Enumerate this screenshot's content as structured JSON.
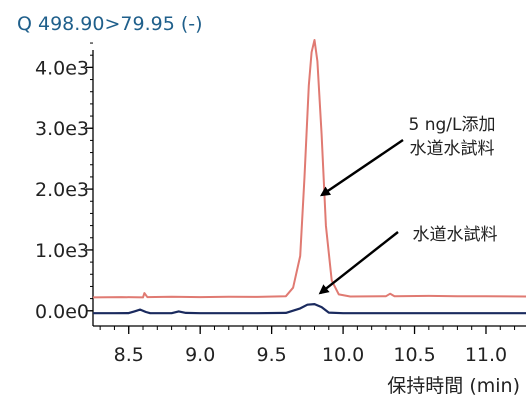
{
  "chart_data": {
    "type": "line",
    "title": "Q 498.90>79.95 (-)",
    "xlabel": "保持時間 (min)",
    "ylabel": "",
    "xlim": [
      8.25,
      11.28
    ],
    "ylim": [
      -250,
      4450
    ],
    "x_ticks": [
      8.5,
      9.0,
      9.5,
      10.0,
      10.5,
      11.0
    ],
    "x_tick_labels": [
      "8.5",
      "9.0",
      "9.5",
      "10.0",
      "10.5",
      "11.0"
    ],
    "y_ticks": [
      0,
      1000,
      2000,
      3000,
      4000
    ],
    "y_tick_labels": [
      "0.0e0",
      "1.0e3",
      "2.0e3",
      "3.0e3",
      "4.0e3"
    ],
    "grid": false,
    "series": [
      {
        "name": "5 ng/L添加 水道水試料",
        "color": "#e07a72",
        "x": [
          8.25,
          8.45,
          8.6,
          8.61,
          8.63,
          8.8,
          9.0,
          9.2,
          9.4,
          9.6,
          9.65,
          9.7,
          9.73,
          9.76,
          9.78,
          9.8,
          9.82,
          9.85,
          9.88,
          9.92,
          9.97,
          10.05,
          10.3,
          10.33,
          10.36,
          10.6,
          10.8,
          11.0,
          11.28
        ],
        "y": [
          220,
          225,
          220,
          290,
          225,
          230,
          225,
          230,
          228,
          240,
          380,
          900,
          2200,
          3700,
          4250,
          4450,
          4100,
          2900,
          1400,
          500,
          270,
          235,
          240,
          280,
          240,
          245,
          240,
          240,
          235
        ]
      },
      {
        "name": "水道水試料",
        "color": "#1a2a5e",
        "x": [
          8.25,
          8.4,
          8.5,
          8.54,
          8.58,
          8.62,
          8.65,
          8.7,
          8.8,
          8.85,
          8.9,
          9.0,
          9.2,
          9.4,
          9.6,
          9.7,
          9.75,
          9.8,
          9.85,
          9.9,
          10.0,
          10.2,
          10.6,
          11.0,
          11.28
        ],
        "y": [
          -40,
          -40,
          -38,
          -10,
          20,
          -20,
          -40,
          -40,
          -40,
          -10,
          -35,
          -40,
          -40,
          -40,
          -35,
          40,
          100,
          110,
          60,
          -30,
          -40,
          -40,
          -40,
          -40,
          -40
        ]
      }
    ],
    "annotations": [
      {
        "lines": [
          "5 ng/L添加",
          "水道水試料"
        ],
        "points_to": [
          9.85,
          1900
        ]
      },
      {
        "lines": [
          "水道水試料"
        ],
        "points_to": [
          9.84,
          290
        ]
      }
    ]
  }
}
